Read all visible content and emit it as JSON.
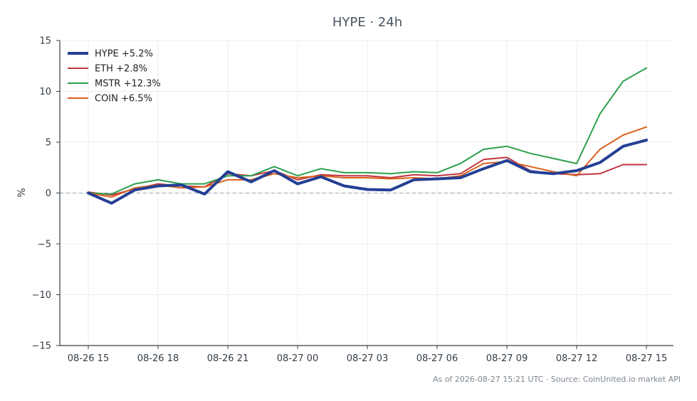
{
  "chart_data": {
    "type": "line",
    "title": "HYPE · 24h",
    "ylabel": "%",
    "xlabel": "",
    "ylim": [
      -15,
      15
    ],
    "yticks": [
      15,
      10,
      5,
      0,
      -5,
      -10,
      -15
    ],
    "ytick_labels": [
      "15",
      "10",
      "5",
      "0",
      "−5",
      "−10",
      "−15"
    ],
    "x": [
      "08-26 15",
      "08-26 16",
      "08-26 17",
      "08-26 18",
      "08-26 19",
      "08-26 20",
      "08-26 21",
      "08-26 22",
      "08-26 23",
      "08-27 00",
      "08-27 01",
      "08-27 02",
      "08-27 03",
      "08-27 04",
      "08-27 05",
      "08-27 06",
      "08-27 07",
      "08-27 08",
      "08-27 09",
      "08-27 10",
      "08-27 11",
      "08-27 12",
      "08-27 13",
      "08-27 14",
      "08-27 15"
    ],
    "xticks": [
      "08-26 15",
      "08-26 18",
      "08-26 21",
      "08-27 00",
      "08-27 03",
      "08-27 06",
      "08-27 09",
      "08-27 12",
      "08-27 15"
    ],
    "grid": true,
    "zero_line": true,
    "legend_position": "top-left",
    "series": [
      {
        "name": "HYPE +5.2%",
        "color": "#233f94",
        "width": 4,
        "values": [
          0,
          -1.0,
          0.3,
          0.7,
          0.8,
          -0.1,
          2.1,
          1.1,
          2.2,
          0.9,
          1.6,
          0.7,
          0.35,
          0.3,
          1.3,
          1.4,
          1.5,
          2.4,
          3.2,
          2.1,
          1.9,
          2.2,
          3.0,
          4.6,
          5.2
        ]
      },
      {
        "name": "ETH +2.8%",
        "color": "#c0343c",
        "width": 2,
        "values": [
          0.1,
          -0.2,
          0.4,
          0.9,
          0.7,
          0.6,
          1.9,
          1.7,
          2.2,
          1.3,
          1.8,
          1.7,
          1.7,
          1.5,
          1.8,
          1.7,
          1.9,
          3.3,
          3.5,
          2.2,
          1.9,
          1.8,
          1.9,
          2.8,
          2.8
        ]
      },
      {
        "name": "MSTR +12.3%",
        "color": "#2ca04c",
        "width": 2,
        "values": [
          0,
          -0.1,
          0.9,
          1.3,
          0.9,
          0.9,
          1.7,
          1.7,
          2.6,
          1.7,
          2.4,
          2.0,
          2.0,
          1.9,
          2.1,
          2.0,
          2.9,
          4.3,
          4.6,
          3.9,
          3.4,
          2.9,
          7.8,
          11.0,
          12.3
        ]
      },
      {
        "name": "COIN +6.5%",
        "color": "#d9601e",
        "width": 2,
        "values": [
          0,
          -0.4,
          0.5,
          0.8,
          0.5,
          0.6,
          1.3,
          1.3,
          1.9,
          1.5,
          1.7,
          1.5,
          1.5,
          1.4,
          1.5,
          1.4,
          1.7,
          2.9,
          3.1,
          2.6,
          2.1,
          1.7,
          4.3,
          5.7,
          6.5
        ]
      }
    ]
  },
  "footer": "As of 2026-08-27 15:21 UTC · Source: CoinUnited.io market API"
}
